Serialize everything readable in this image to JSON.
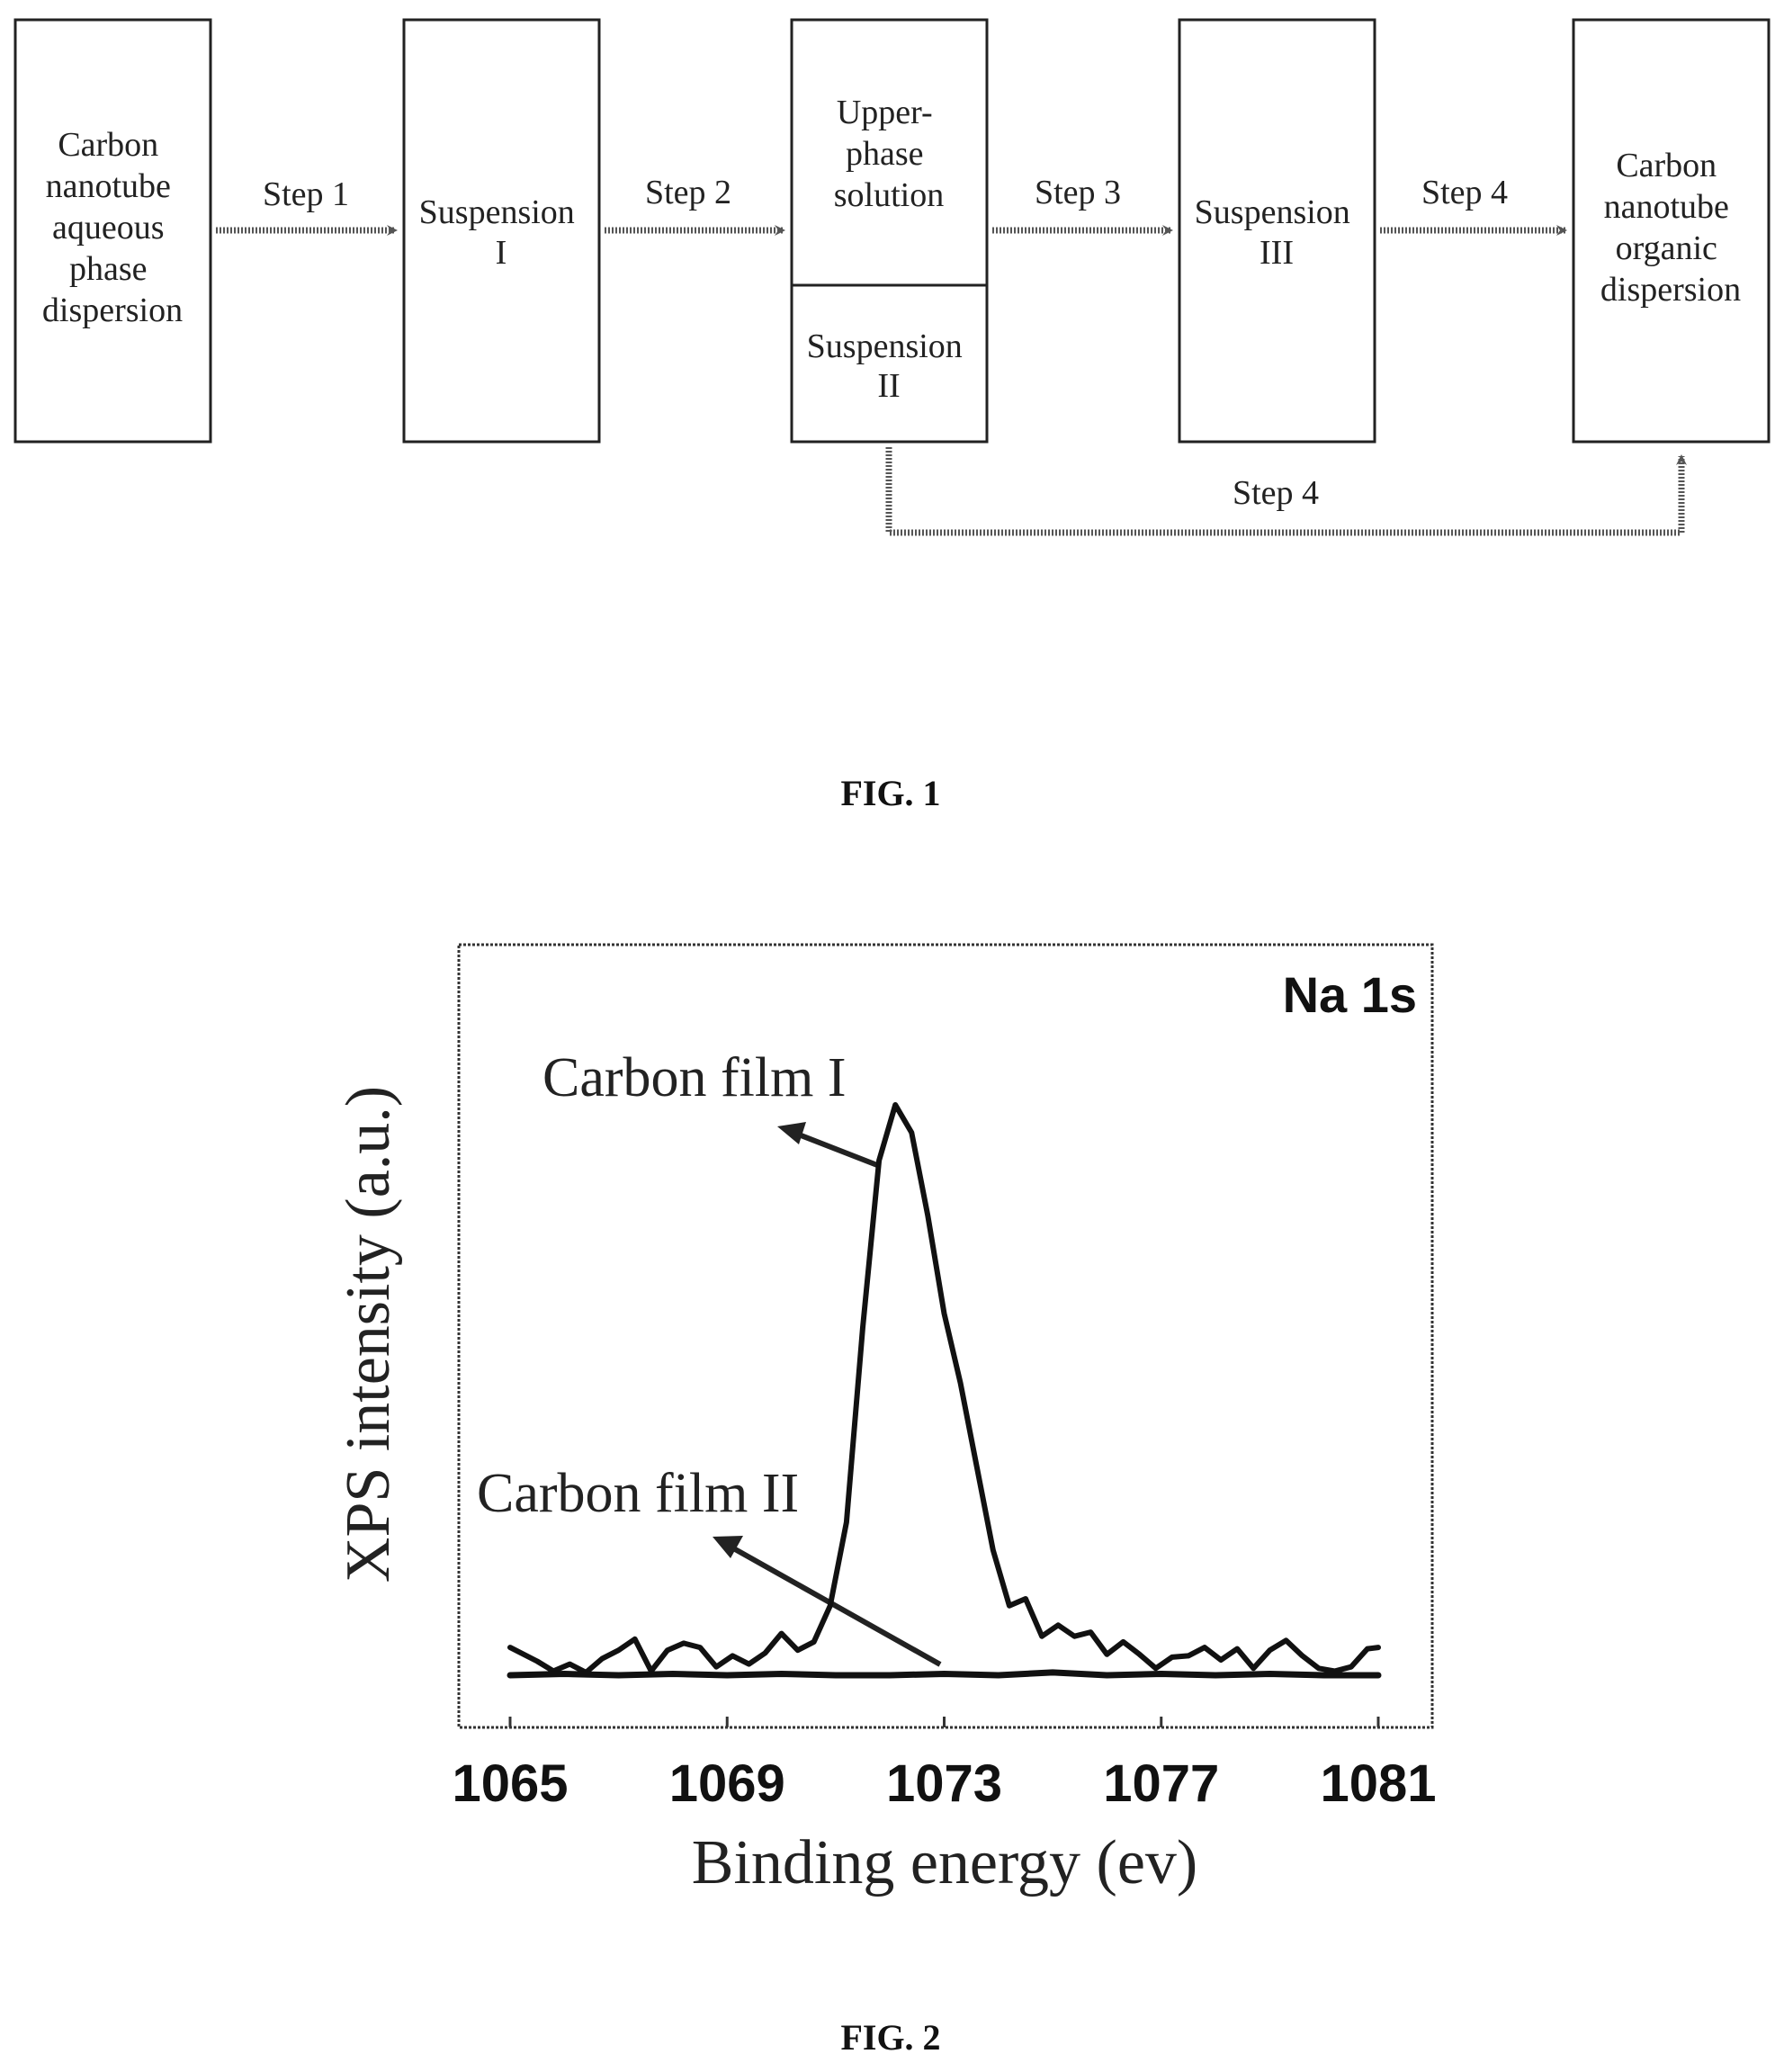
{
  "figure1": {
    "caption": "FIG. 1",
    "boxes": [
      {
        "id": "aqueous",
        "lines": [
          "Carbon",
          "nanotube",
          "aqueous",
          "phase",
          "dispersion"
        ]
      },
      {
        "id": "susp1",
        "lines": [
          "Suspension",
          "I"
        ]
      },
      {
        "id": "upper",
        "lines": [
          "Upper-",
          "phase",
          "solution"
        ]
      },
      {
        "id": "susp2",
        "lines": [
          "Suspension",
          "II"
        ]
      },
      {
        "id": "susp3",
        "lines": [
          "Suspension",
          "III"
        ]
      },
      {
        "id": "organic",
        "lines": [
          "Carbon",
          "nanotube",
          "organic",
          "dispersion"
        ]
      }
    ],
    "arrows": [
      {
        "id": "step1",
        "label": "Step 1"
      },
      {
        "id": "step2",
        "label": "Step 2"
      },
      {
        "id": "step3",
        "label": "Step 3"
      },
      {
        "id": "step4a",
        "label": "Step 4"
      },
      {
        "id": "step4b",
        "label": "Step 4"
      }
    ]
  },
  "figure2": {
    "caption": "FIG. 2",
    "chart_data": {
      "type": "line",
      "title": "Na 1s",
      "xlabel": "Binding energy (ev)",
      "ylabel": "XPS intensity (a.u.)",
      "xlim": [
        1065,
        1081
      ],
      "x_ticks": [
        1065,
        1069,
        1073,
        1077,
        1081
      ],
      "y_ticks_shown": false,
      "annotations": [
        "Carbon film I",
        "Carbon film II"
      ],
      "series": [
        {
          "name": "Carbon film I",
          "x": [
            1065.0,
            1065.5,
            1065.8,
            1066.1,
            1066.4,
            1066.7,
            1067.0,
            1067.3,
            1067.6,
            1067.9,
            1068.2,
            1068.5,
            1068.8,
            1069.1,
            1069.4,
            1069.7,
            1070.0,
            1070.3,
            1070.6,
            1070.9,
            1071.2,
            1071.5,
            1071.8,
            1072.1,
            1072.4,
            1072.7,
            1073.0,
            1073.3,
            1073.6,
            1073.9,
            1074.2,
            1074.5,
            1074.8,
            1075.1,
            1075.4,
            1075.7,
            1076.0,
            1076.3,
            1076.6,
            1076.9,
            1077.2,
            1077.5,
            1077.8,
            1078.1,
            1078.4,
            1078.7,
            1079.0,
            1079.3,
            1079.6,
            1079.9,
            1080.2,
            1080.5,
            1080.8,
            1081.0
          ],
          "y": [
            2.0,
            1.0,
            0.3,
            0.8,
            0.2,
            1.2,
            1.8,
            2.6,
            0.3,
            1.8,
            2.3,
            2.0,
            0.6,
            1.4,
            0.8,
            1.6,
            3.0,
            1.8,
            2.4,
            5.0,
            11.0,
            25.0,
            37.0,
            41.0,
            39.0,
            33.0,
            26.0,
            21.0,
            15.0,
            9.0,
            5.0,
            5.5,
            2.8,
            3.6,
            2.8,
            3.1,
            1.5,
            2.4,
            1.5,
            0.5,
            1.3,
            1.4,
            2.0,
            1.1,
            1.9,
            0.5,
            1.8,
            2.5,
            1.4,
            0.5,
            0.3,
            0.6,
            1.9,
            2.0
          ]
        },
        {
          "name": "Carbon film II",
          "x": [
            1065.0,
            1066.0,
            1067.0,
            1068.0,
            1069.0,
            1070.0,
            1071.0,
            1072.0,
            1073.0,
            1074.0,
            1075.0,
            1076.0,
            1077.0,
            1078.0,
            1079.0,
            1080.0,
            1081.0
          ],
          "y": [
            0.0,
            0.1,
            0.0,
            0.1,
            0.0,
            0.1,
            0.0,
            0.0,
            0.1,
            0.0,
            0.2,
            0.0,
            0.1,
            0.0,
            0.1,
            0.0,
            0.0
          ]
        }
      ]
    }
  }
}
